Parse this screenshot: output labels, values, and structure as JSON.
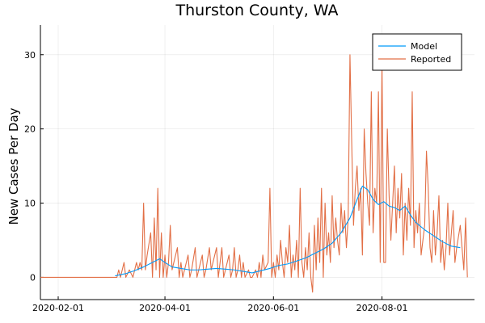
{
  "chart_data": {
    "type": "line",
    "title": "Thurston County, WA",
    "xlabel": "",
    "ylabel": "New Cases Per Day",
    "x_type": "date",
    "x_ticks": [
      "2020-02-01",
      "2020-04-01",
      "2020-06-01",
      "2020-08-01"
    ],
    "y_ticks": [
      0,
      10,
      20,
      30
    ],
    "xlim": [
      "2020-01-22",
      "2020-09-22"
    ],
    "ylim": [
      -3,
      34
    ],
    "grid": true,
    "legend_position": "top-right",
    "colors": {
      "model": "#009AFA",
      "reported": "#E26F46"
    },
    "series": [
      {
        "name": "Model",
        "points": [
          [
            "2020-03-04",
            0.2
          ],
          [
            "2020-03-10",
            0.5
          ],
          [
            "2020-03-15",
            0.9
          ],
          [
            "2020-03-20",
            1.4
          ],
          [
            "2020-03-25",
            2.0
          ],
          [
            "2020-03-29",
            2.5
          ],
          [
            "2020-04-01",
            2.0
          ],
          [
            "2020-04-05",
            1.4
          ],
          [
            "2020-04-10",
            1.2
          ],
          [
            "2020-04-15",
            1.0
          ],
          [
            "2020-04-20",
            1.0
          ],
          [
            "2020-04-25",
            1.1
          ],
          [
            "2020-04-30",
            1.2
          ],
          [
            "2020-05-05",
            1.1
          ],
          [
            "2020-05-10",
            1.0
          ],
          [
            "2020-05-15",
            0.8
          ],
          [
            "2020-05-20",
            0.6
          ],
          [
            "2020-05-25",
            0.9
          ],
          [
            "2020-05-30",
            1.2
          ],
          [
            "2020-06-04",
            1.6
          ],
          [
            "2020-06-09",
            1.8
          ],
          [
            "2020-06-14",
            2.2
          ],
          [
            "2020-06-19",
            2.6
          ],
          [
            "2020-06-24",
            3.2
          ],
          [
            "2020-06-29",
            3.8
          ],
          [
            "2020-07-04",
            4.6
          ],
          [
            "2020-07-09",
            6.0
          ],
          [
            "2020-07-14",
            8.0
          ],
          [
            "2020-07-18",
            10.5
          ],
          [
            "2020-07-21",
            12.3
          ],
          [
            "2020-07-24",
            11.8
          ],
          [
            "2020-07-27",
            10.5
          ],
          [
            "2020-07-30",
            9.8
          ],
          [
            "2020-08-02",
            10.2
          ],
          [
            "2020-08-05",
            9.6
          ],
          [
            "2020-08-08",
            9.4
          ],
          [
            "2020-08-11",
            9.0
          ],
          [
            "2020-08-14",
            9.6
          ],
          [
            "2020-08-17",
            8.4
          ],
          [
            "2020-08-20",
            7.4
          ],
          [
            "2020-08-25",
            6.4
          ],
          [
            "2020-08-30",
            5.6
          ],
          [
            "2020-09-04",
            4.8
          ],
          [
            "2020-09-09",
            4.2
          ],
          [
            "2020-09-14",
            4.0
          ]
        ]
      },
      {
        "name": "Reported",
        "points": [
          [
            "2020-01-22",
            0
          ],
          [
            "2020-03-05",
            0
          ],
          [
            "2020-03-06",
            1
          ],
          [
            "2020-03-07",
            0
          ],
          [
            "2020-03-09",
            2
          ],
          [
            "2020-03-10",
            0
          ],
          [
            "2020-03-12",
            1
          ],
          [
            "2020-03-14",
            0
          ],
          [
            "2020-03-16",
            2
          ],
          [
            "2020-03-17",
            1
          ],
          [
            "2020-03-18",
            2
          ],
          [
            "2020-03-19",
            1
          ],
          [
            "2020-03-20",
            10
          ],
          [
            "2020-03-21",
            1
          ],
          [
            "2020-03-22",
            3
          ],
          [
            "2020-03-24",
            6
          ],
          [
            "2020-03-25",
            0
          ],
          [
            "2020-03-26",
            8
          ],
          [
            "2020-03-27",
            1
          ],
          [
            "2020-03-28",
            12
          ],
          [
            "2020-03-29",
            0
          ],
          [
            "2020-03-30",
            6
          ],
          [
            "2020-03-31",
            0
          ],
          [
            "2020-04-01",
            3
          ],
          [
            "2020-04-02",
            0
          ],
          [
            "2020-04-03",
            2
          ],
          [
            "2020-04-04",
            7
          ],
          [
            "2020-04-05",
            1
          ],
          [
            "2020-04-06",
            2
          ],
          [
            "2020-04-08",
            4
          ],
          [
            "2020-04-09",
            0
          ],
          [
            "2020-04-10",
            2
          ],
          [
            "2020-04-11",
            0
          ],
          [
            "2020-04-12",
            1
          ],
          [
            "2020-04-14",
            3
          ],
          [
            "2020-04-15",
            0
          ],
          [
            "2020-04-16",
            1
          ],
          [
            "2020-04-18",
            4
          ],
          [
            "2020-04-19",
            0
          ],
          [
            "2020-04-21",
            2
          ],
          [
            "2020-04-22",
            3
          ],
          [
            "2020-04-23",
            0
          ],
          [
            "2020-04-24",
            1
          ],
          [
            "2020-04-26",
            4
          ],
          [
            "2020-04-27",
            1
          ],
          [
            "2020-04-28",
            2
          ],
          [
            "2020-04-30",
            4
          ],
          [
            "2020-05-01",
            0
          ],
          [
            "2020-05-02",
            2
          ],
          [
            "2020-05-03",
            4
          ],
          [
            "2020-05-04",
            0
          ],
          [
            "2020-05-06",
            2
          ],
          [
            "2020-05-07",
            3
          ],
          [
            "2020-05-08",
            0
          ],
          [
            "2020-05-09",
            1
          ],
          [
            "2020-05-10",
            4
          ],
          [
            "2020-05-11",
            0
          ],
          [
            "2020-05-12",
            1
          ],
          [
            "2020-05-13",
            3
          ],
          [
            "2020-05-14",
            0
          ],
          [
            "2020-05-15",
            2
          ],
          [
            "2020-05-16",
            0
          ],
          [
            "2020-05-18",
            1
          ],
          [
            "2020-05-19",
            0
          ],
          [
            "2020-05-20",
            0
          ],
          [
            "2020-05-22",
            1
          ],
          [
            "2020-05-23",
            0
          ],
          [
            "2020-05-24",
            2
          ],
          [
            "2020-05-25",
            0
          ],
          [
            "2020-05-26",
            3
          ],
          [
            "2020-05-27",
            1
          ],
          [
            "2020-05-29",
            2
          ],
          [
            "2020-05-30",
            12
          ],
          [
            "2020-05-31",
            0
          ],
          [
            "2020-06-01",
            2
          ],
          [
            "2020-06-02",
            0
          ],
          [
            "2020-06-03",
            3
          ],
          [
            "2020-06-04",
            1
          ],
          [
            "2020-06-05",
            5
          ],
          [
            "2020-06-06",
            2
          ],
          [
            "2020-06-07",
            0
          ],
          [
            "2020-06-08",
            4
          ],
          [
            "2020-06-09",
            2
          ],
          [
            "2020-06-10",
            7
          ],
          [
            "2020-06-11",
            0
          ],
          [
            "2020-06-12",
            3
          ],
          [
            "2020-06-13",
            1
          ],
          [
            "2020-06-14",
            5
          ],
          [
            "2020-06-15",
            0
          ],
          [
            "2020-06-16",
            12
          ],
          [
            "2020-06-17",
            2
          ],
          [
            "2020-06-18",
            0
          ],
          [
            "2020-06-19",
            4
          ],
          [
            "2020-06-20",
            1
          ],
          [
            "2020-06-21",
            6
          ],
          [
            "2020-06-22",
            0
          ],
          [
            "2020-06-23",
            -2
          ],
          [
            "2020-06-24",
            7
          ],
          [
            "2020-06-25",
            1
          ],
          [
            "2020-06-26",
            8
          ],
          [
            "2020-06-27",
            2
          ],
          [
            "2020-06-28",
            12
          ],
          [
            "2020-06-29",
            0
          ],
          [
            "2020-06-30",
            10
          ],
          [
            "2020-07-01",
            3
          ],
          [
            "2020-07-02",
            6
          ],
          [
            "2020-07-03",
            2
          ],
          [
            "2020-07-04",
            11
          ],
          [
            "2020-07-05",
            4
          ],
          [
            "2020-07-06",
            8
          ],
          [
            "2020-07-07",
            5
          ],
          [
            "2020-07-08",
            3
          ],
          [
            "2020-07-09",
            10
          ],
          [
            "2020-07-10",
            6
          ],
          [
            "2020-07-11",
            9
          ],
          [
            "2020-07-12",
            4
          ],
          [
            "2020-07-13",
            8
          ],
          [
            "2020-07-14",
            30
          ],
          [
            "2020-07-15",
            18
          ],
          [
            "2020-07-16",
            7
          ],
          [
            "2020-07-17",
            12
          ],
          [
            "2020-07-18",
            15
          ],
          [
            "2020-07-19",
            9
          ],
          [
            "2020-07-20",
            12
          ],
          [
            "2020-07-21",
            3
          ],
          [
            "2020-07-22",
            20
          ],
          [
            "2020-07-23",
            14
          ],
          [
            "2020-07-24",
            10
          ],
          [
            "2020-07-25",
            7
          ],
          [
            "2020-07-26",
            25
          ],
          [
            "2020-07-27",
            6
          ],
          [
            "2020-07-28",
            12
          ],
          [
            "2020-07-29",
            10
          ],
          [
            "2020-07-30",
            25
          ],
          [
            "2020-07-31",
            2
          ],
          [
            "2020-08-01",
            29
          ],
          [
            "2020-08-02",
            2
          ],
          [
            "2020-08-03",
            2
          ],
          [
            "2020-08-04",
            20
          ],
          [
            "2020-08-05",
            11
          ],
          [
            "2020-08-06",
            5
          ],
          [
            "2020-08-07",
            10
          ],
          [
            "2020-08-08",
            15
          ],
          [
            "2020-08-09",
            6
          ],
          [
            "2020-08-10",
            12
          ],
          [
            "2020-08-11",
            8
          ],
          [
            "2020-08-12",
            14
          ],
          [
            "2020-08-13",
            3
          ],
          [
            "2020-08-14",
            10
          ],
          [
            "2020-08-15",
            5
          ],
          [
            "2020-08-16",
            12
          ],
          [
            "2020-08-17",
            7
          ],
          [
            "2020-08-18",
            25
          ],
          [
            "2020-08-19",
            4
          ],
          [
            "2020-08-20",
            9
          ],
          [
            "2020-08-21",
            6
          ],
          [
            "2020-08-22",
            10
          ],
          [
            "2020-08-23",
            3
          ],
          [
            "2020-08-25",
            7
          ],
          [
            "2020-08-26",
            17
          ],
          [
            "2020-08-27",
            12
          ],
          [
            "2020-08-28",
            4
          ],
          [
            "2020-08-29",
            2
          ],
          [
            "2020-08-30",
            9
          ],
          [
            "2020-08-31",
            3
          ],
          [
            "2020-09-01",
            6
          ],
          [
            "2020-09-02",
            11
          ],
          [
            "2020-09-03",
            2
          ],
          [
            "2020-09-04",
            5
          ],
          [
            "2020-09-05",
            1
          ],
          [
            "2020-09-06",
            4
          ],
          [
            "2020-09-07",
            10
          ],
          [
            "2020-09-08",
            3
          ],
          [
            "2020-09-09",
            6
          ],
          [
            "2020-09-10",
            9
          ],
          [
            "2020-09-11",
            2
          ],
          [
            "2020-09-12",
            4
          ],
          [
            "2020-09-14",
            7
          ],
          [
            "2020-09-15",
            4
          ],
          [
            "2020-09-16",
            1
          ],
          [
            "2020-09-17",
            8
          ],
          [
            "2020-09-18",
            0
          ]
        ]
      }
    ]
  }
}
